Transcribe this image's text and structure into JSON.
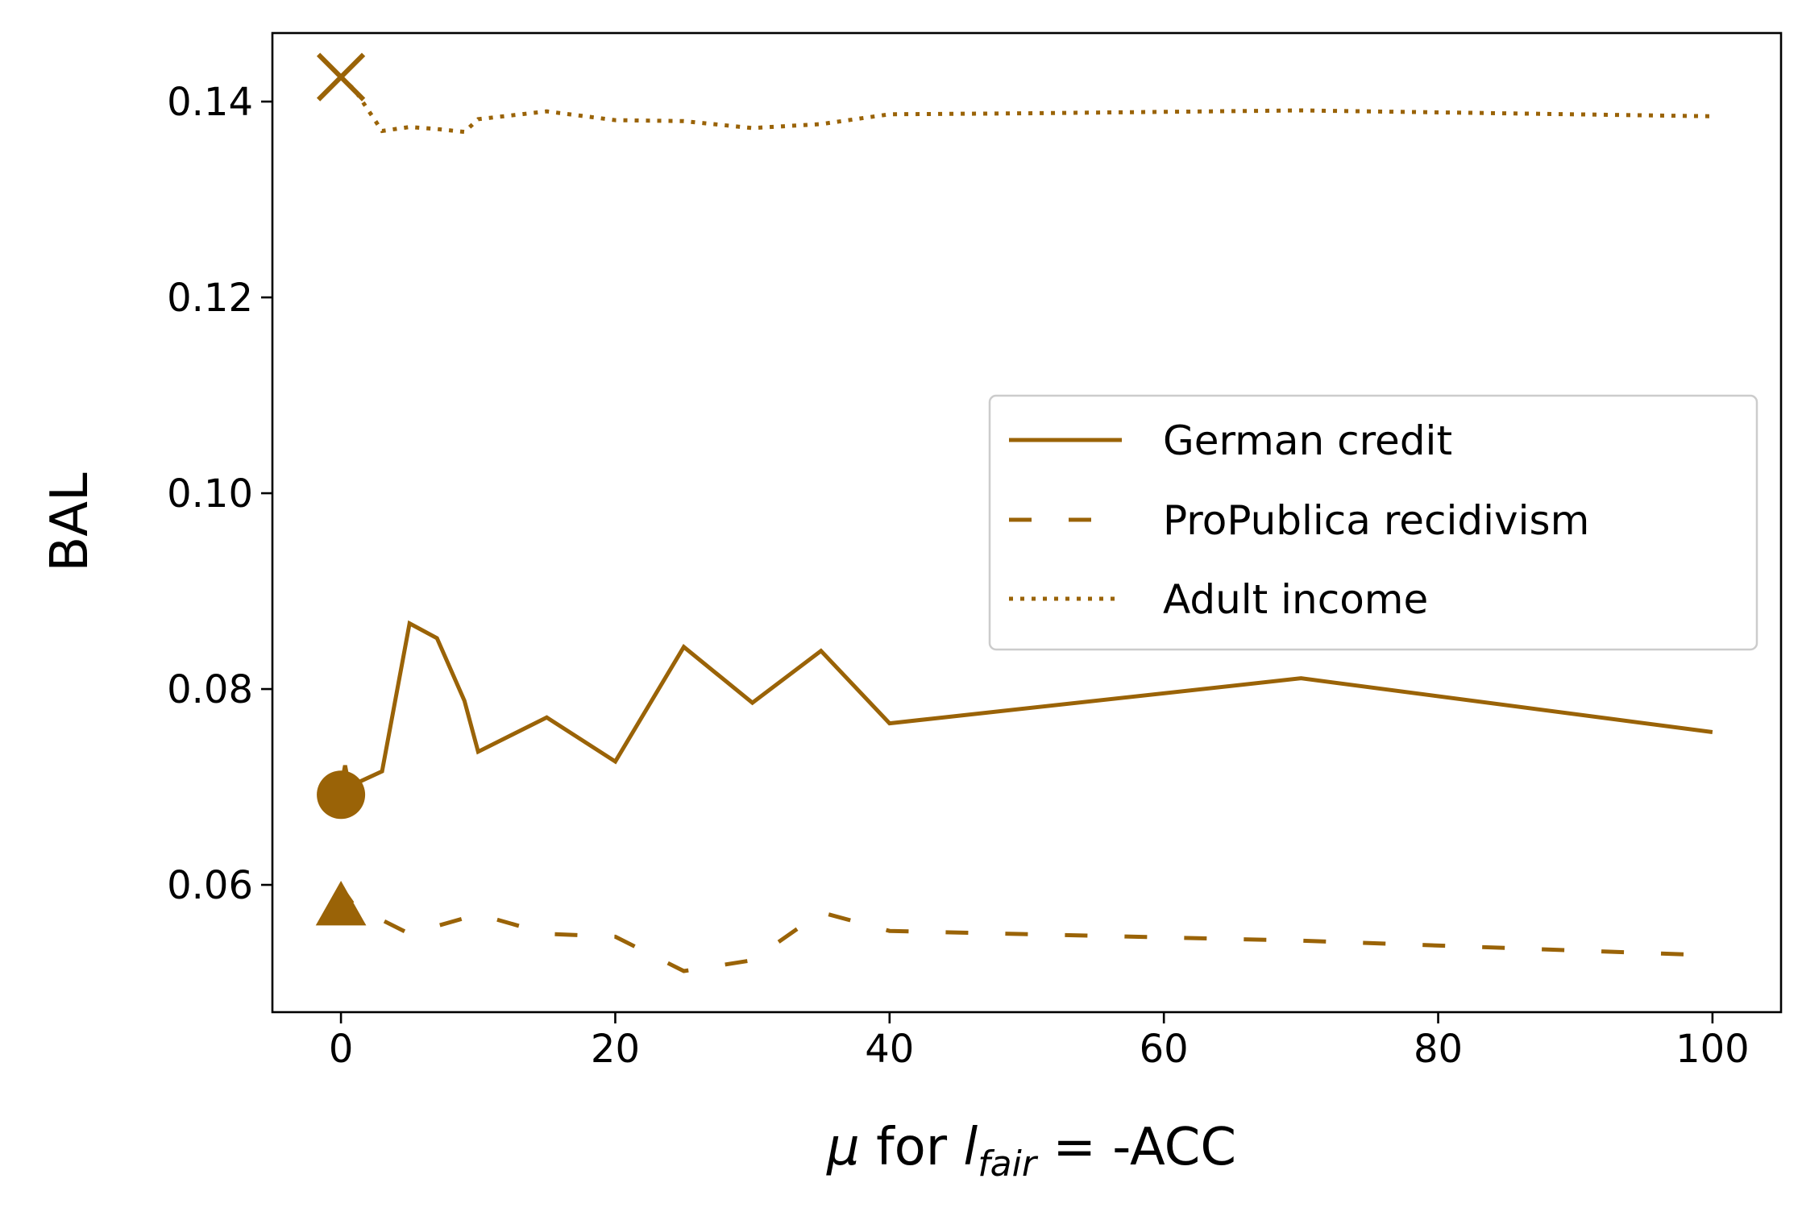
{
  "chart_data": {
    "type": "line",
    "xlabel": {
      "mu": "μ",
      "text": " for ",
      "l": "l",
      "sub": "fair",
      "rest": " = -ACC"
    },
    "ylabel": "BAL",
    "xlim": [
      -5,
      105
    ],
    "ylim": [
      0.047,
      0.147
    ],
    "x_ticks": [
      0,
      20,
      40,
      60,
      80,
      100
    ],
    "x_tick_labels": [
      "0",
      "20",
      "40",
      "60",
      "80",
      "100"
    ],
    "y_ticks": [
      0.06,
      0.08,
      0.1,
      0.12,
      0.14
    ],
    "y_tick_labels": [
      "0.06",
      "0.08",
      "0.10",
      "0.12",
      "0.14"
    ],
    "grid": false,
    "legend_position": "center-right",
    "series": [
      {
        "name": "German credit",
        "style": "solid",
        "color": "#9a6307",
        "marker": "circle",
        "marker_point": [
          0,
          0.0692
        ],
        "x": [
          0,
          0.3,
          0.6,
          1,
          3,
          5,
          7,
          9,
          10,
          15,
          20,
          25,
          30,
          35,
          40,
          70,
          100
        ],
        "y": [
          0.07,
          0.0722,
          0.07,
          0.0703,
          0.0716,
          0.0867,
          0.0852,
          0.0788,
          0.0736,
          0.0771,
          0.0726,
          0.0843,
          0.0786,
          0.0839,
          0.0765,
          0.0811,
          0.0756
        ]
      },
      {
        "name": "ProPublica recidivism",
        "style": "dashed",
        "color": "#9a6307",
        "marker": "triangle",
        "marker_point": [
          0,
          0.0577
        ],
        "x": [
          0,
          0.5,
          1,
          5,
          10,
          15,
          20,
          25,
          30,
          35,
          40,
          70,
          100
        ],
        "y": [
          0.0575,
          0.0588,
          0.0578,
          0.055,
          0.057,
          0.055,
          0.0547,
          0.0512,
          0.0523,
          0.0572,
          0.0553,
          0.0543,
          0.0528
        ]
      },
      {
        "name": "Adult income",
        "style": "dotted",
        "color": "#9a6307",
        "marker": "x",
        "marker_point": [
          0,
          0.1425
        ],
        "x": [
          0,
          1,
          3,
          5,
          7,
          9,
          10,
          15,
          20,
          25,
          30,
          35,
          40,
          50,
          70,
          100
        ],
        "y": [
          0.1425,
          0.1412,
          0.137,
          0.1374,
          0.1372,
          0.1369,
          0.1382,
          0.139,
          0.1381,
          0.138,
          0.1373,
          0.1377,
          0.1387,
          0.1388,
          0.1391,
          0.1385
        ]
      }
    ]
  }
}
